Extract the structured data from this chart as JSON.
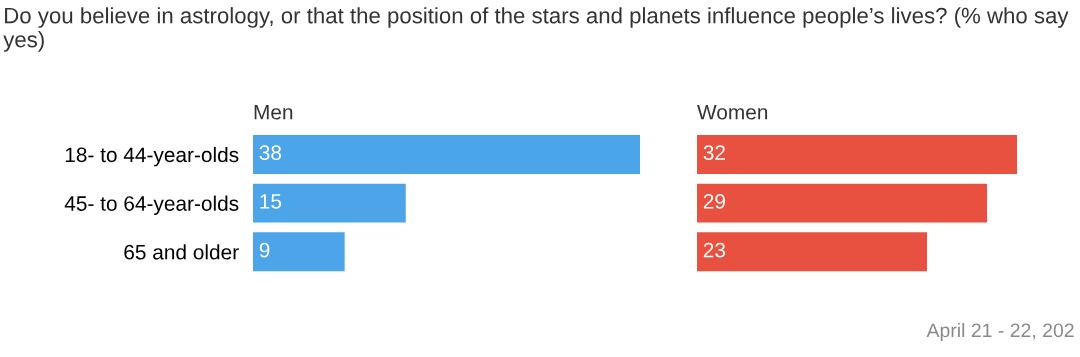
{
  "chart_data": [
    {
      "type": "bar",
      "orientation": "horizontal",
      "title": "Do you believe in astrology, or that the position of the stars and planets influence people’s lives? (% who say yes)",
      "subtitle": "Men",
      "categories": [
        "18- to 44-year-olds",
        "45- to 64-year-olds",
        "65 and older"
      ],
      "values": [
        38,
        15,
        9
      ],
      "color": "#4ba5e8",
      "data_labels": true,
      "tick_labels": "y"
    },
    {
      "type": "bar",
      "orientation": "horizontal",
      "subtitle": "Women",
      "categories": [
        null,
        null,
        null
      ],
      "values": [
        32,
        29,
        23
      ],
      "color": "#e8513f",
      "data_labels": true,
      "annotations": [
        "April 21 - 22, 202"
      ]
    }
  ]
}
